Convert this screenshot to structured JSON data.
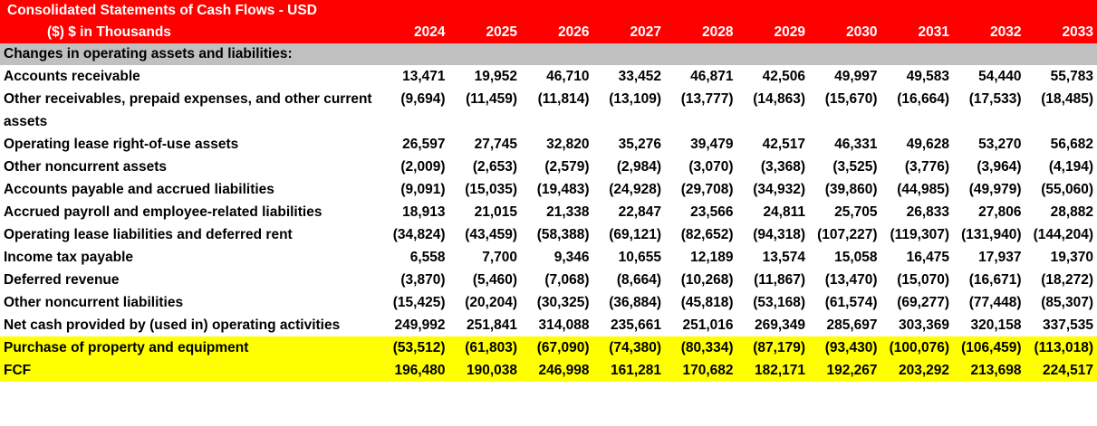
{
  "header": {
    "title_line1": "Consolidated Statements of Cash Flows - USD",
    "title_line2": "($) $ in Thousands",
    "years": [
      "2024",
      "2025",
      "2026",
      "2027",
      "2028",
      "2029",
      "2030",
      "2031",
      "2032",
      "2033"
    ]
  },
  "section": {
    "label": "Changes in operating assets and liabilities:"
  },
  "rows": [
    {
      "label": "Accounts receivable",
      "values": [
        "13,471",
        "19,952",
        "46,710",
        "33,452",
        "46,871",
        "42,506",
        "49,997",
        "49,583",
        "54,440",
        "55,783"
      ]
    },
    {
      "label": "Other receivables, prepaid expenses, and other current assets",
      "values": [
        "(9,694)",
        "(11,459)",
        "(11,814)",
        "(13,109)",
        "(13,777)",
        "(14,863)",
        "(15,670)",
        "(16,664)",
        "(17,533)",
        "(18,485)"
      ]
    },
    {
      "label": "Operating lease right-of-use assets",
      "values": [
        "26,597",
        "27,745",
        "32,820",
        "35,276",
        "39,479",
        "42,517",
        "46,331",
        "49,628",
        "53,270",
        "56,682"
      ]
    },
    {
      "label": "Other noncurrent assets",
      "values": [
        "(2,009)",
        "(2,653)",
        "(2,579)",
        "(2,984)",
        "(3,070)",
        "(3,368)",
        "(3,525)",
        "(3,776)",
        "(3,964)",
        "(4,194)"
      ]
    },
    {
      "label": "Accounts payable and accrued liabilities",
      "values": [
        "(9,091)",
        "(15,035)",
        "(19,483)",
        "(24,928)",
        "(29,708)",
        "(34,932)",
        "(39,860)",
        "(44,985)",
        "(49,979)",
        "(55,060)"
      ]
    },
    {
      "label": "Accrued payroll and employee-related liabilities",
      "values": [
        "18,913",
        "21,015",
        "21,338",
        "22,847",
        "23,566",
        "24,811",
        "25,705",
        "26,833",
        "27,806",
        "28,882"
      ]
    },
    {
      "label": "Operating lease liabilities and deferred rent",
      "values": [
        "(34,824)",
        "(43,459)",
        "(58,388)",
        "(69,121)",
        "(82,652)",
        "(94,318)",
        "(107,227)",
        "(119,307)",
        "(131,940)",
        "(144,204)"
      ]
    },
    {
      "label": "Income tax payable",
      "values": [
        "6,558",
        "7,700",
        "9,346",
        "10,655",
        "12,189",
        "13,574",
        "15,058",
        "16,475",
        "17,937",
        "19,370"
      ]
    },
    {
      "label": "Deferred revenue",
      "values": [
        "(3,870)",
        "(5,460)",
        "(7,068)",
        "(8,664)",
        "(10,268)",
        "(11,867)",
        "(13,470)",
        "(15,070)",
        "(16,671)",
        "(18,272)"
      ]
    },
    {
      "label": "Other noncurrent liabilities",
      "values": [
        "(15,425)",
        "(20,204)",
        "(30,325)",
        "(36,884)",
        "(45,818)",
        "(53,168)",
        "(61,574)",
        "(69,277)",
        "(77,448)",
        "(85,307)"
      ]
    },
    {
      "label": "Net cash provided by (used in) operating activities",
      "values": [
        "249,992",
        "251,841",
        "314,088",
        "235,661",
        "251,016",
        "269,349",
        "285,697",
        "303,369",
        "320,158",
        "337,535"
      ]
    },
    {
      "label": "Purchase of property and equipment",
      "values": [
        "(53,512)",
        "(61,803)",
        "(67,090)",
        "(74,380)",
        "(80,334)",
        "(87,179)",
        "(93,430)",
        "(100,076)",
        "(106,459)",
        "(113,018)"
      ]
    },
    {
      "label": "FCF",
      "values": [
        "196,480",
        "190,038",
        "246,998",
        "161,281",
        "170,682",
        "182,171",
        "192,267",
        "203,292",
        "213,698",
        "224,517"
      ]
    }
  ],
  "colors": {
    "header_bg": "#ff0000",
    "header_text": "#ffffff",
    "section_bg": "#c0c0c0",
    "highlight_bg": "#ffff00"
  }
}
